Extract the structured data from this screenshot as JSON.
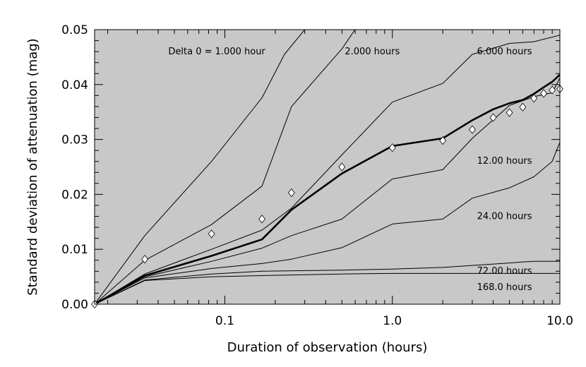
{
  "chart_data": {
    "type": "line",
    "xlabel": "Duration of observation (hours)",
    "ylabel": "Standard deviation of attenuation (mag)",
    "x_scale": "log",
    "xlim": [
      0.0167,
      10.0
    ],
    "ylim": [
      0.0,
      0.05
    ],
    "x_ticks": [
      {
        "value": 0.1,
        "label": "0.1"
      },
      {
        "value": 1.0,
        "label": "1.0"
      },
      {
        "value": 10.0,
        "label": "10.0"
      }
    ],
    "y_ticks": [
      {
        "value": 0.0,
        "label": "0.00"
      },
      {
        "value": 0.01,
        "label": "0.01"
      },
      {
        "value": 0.02,
        "label": "0.02"
      },
      {
        "value": 0.03,
        "label": "0.03"
      },
      {
        "value": 0.04,
        "label": "0.04"
      },
      {
        "value": 0.05,
        "label": "0.05"
      }
    ],
    "background_color": "#c8c8c8",
    "grid": false,
    "series": [
      {
        "label": "Delta 0 = 1.000 hour",
        "x": [
          0.0167,
          0.0333,
          0.0833,
          0.1667,
          0.227,
          0.35
        ],
        "y": [
          0.0,
          0.0125,
          0.026,
          0.0376,
          0.0455,
          0.0525
        ]
      },
      {
        "label": "2.000 hours",
        "x": [
          0.0167,
          0.0333,
          0.0833,
          0.1667,
          0.25,
          0.5,
          0.68
        ],
        "y": [
          0.0,
          0.008,
          0.0145,
          0.0215,
          0.036,
          0.0465,
          0.0525
        ]
      },
      {
        "label": "6.000 hours",
        "x": [
          0.0167,
          0.0333,
          0.0833,
          0.1667,
          0.25,
          0.5,
          1.0,
          2.0,
          3.0,
          5.0,
          7.0,
          10.0
        ],
        "y": [
          0.0,
          0.0055,
          0.01,
          0.0135,
          0.0175,
          0.0272,
          0.0368,
          0.0402,
          0.0455,
          0.0475,
          0.0478,
          0.049
        ]
      },
      {
        "label": "12.00 hours",
        "x": [
          0.0167,
          0.0333,
          0.0833,
          0.1667,
          0.25,
          0.5,
          1.0,
          2.0,
          3.0,
          5.0,
          7.0,
          9.0,
          10.0
        ],
        "y": [
          0.0,
          0.005,
          0.0078,
          0.0102,
          0.0125,
          0.0155,
          0.0228,
          0.0245,
          0.0302,
          0.0362,
          0.0378,
          0.0385,
          0.0412
        ]
      },
      {
        "label": "24.00 hours",
        "x": [
          0.0167,
          0.0333,
          0.0833,
          0.1667,
          0.25,
          0.5,
          1.0,
          2.0,
          3.0,
          5.0,
          7.0,
          9.0,
          10.0
        ],
        "y": [
          0.0,
          0.0048,
          0.0065,
          0.0074,
          0.0082,
          0.0103,
          0.0146,
          0.0155,
          0.0193,
          0.0212,
          0.0232,
          0.026,
          0.0295
        ]
      },
      {
        "label": "72.00 hours",
        "x": [
          0.0167,
          0.0333,
          0.0833,
          0.1667,
          0.5,
          1.0,
          2.0,
          5.0,
          6.0,
          7.0,
          10.0
        ],
        "y": [
          0.0,
          0.0044,
          0.0055,
          0.006,
          0.0062,
          0.0064,
          0.0067,
          0.0075,
          0.0077,
          0.0078,
          0.0078
        ]
      },
      {
        "label": "168.0 hours",
        "x": [
          0.0167,
          0.0333,
          0.0833,
          0.1667,
          0.5,
          1.0,
          2.0,
          5.0,
          10.0
        ],
        "y": [
          0.0,
          0.0043,
          0.005,
          0.0052,
          0.0055,
          0.0056,
          0.0056,
          0.0056,
          0.0056
        ]
      },
      {
        "label": "",
        "emphasis": "bold",
        "x": [
          0.0167,
          0.0333,
          0.0833,
          0.1667,
          0.25,
          0.5,
          1.0,
          2.0,
          3.0,
          4.0,
          5.0,
          6.0,
          7.0,
          8.0,
          9.0,
          10.0
        ],
        "y": [
          0.0,
          0.0052,
          0.0088,
          0.0118,
          0.0172,
          0.0238,
          0.0288,
          0.0302,
          0.0335,
          0.0355,
          0.0366,
          0.0372,
          0.0383,
          0.0395,
          0.0405,
          0.0418
        ]
      }
    ],
    "points": {
      "marker": "diamond",
      "x": [
        0.0167,
        0.0333,
        0.0833,
        0.1667,
        0.25,
        0.5,
        1.0,
        2.0,
        3.0,
        4.0,
        5.0,
        6.0,
        7.0,
        8.0,
        9.0,
        10.0
      ],
      "y": [
        0.0,
        0.0082,
        0.0128,
        0.0155,
        0.0203,
        0.025,
        0.0285,
        0.0298,
        0.0318,
        0.034,
        0.0349,
        0.0359,
        0.0375,
        0.0384,
        0.039,
        0.0392
      ]
    },
    "annotations": [
      {
        "text": "Delta 0 = 1.000 hour",
        "x": 0.046,
        "y": 0.0455
      },
      {
        "text": "2.000 hours",
        "x": 0.52,
        "y": 0.0455
      },
      {
        "text": "6.000 hours",
        "x": 3.2,
        "y": 0.0455
      },
      {
        "text": "12.00 hours",
        "x": 3.2,
        "y": 0.0256
      },
      {
        "text": "24.00 hours",
        "x": 3.2,
        "y": 0.0155
      },
      {
        "text": "72.00 hours",
        "x": 3.2,
        "y": 0.0055
      },
      {
        "text": "168.0 hours",
        "x": 3.2,
        "y": 0.0026
      }
    ]
  }
}
